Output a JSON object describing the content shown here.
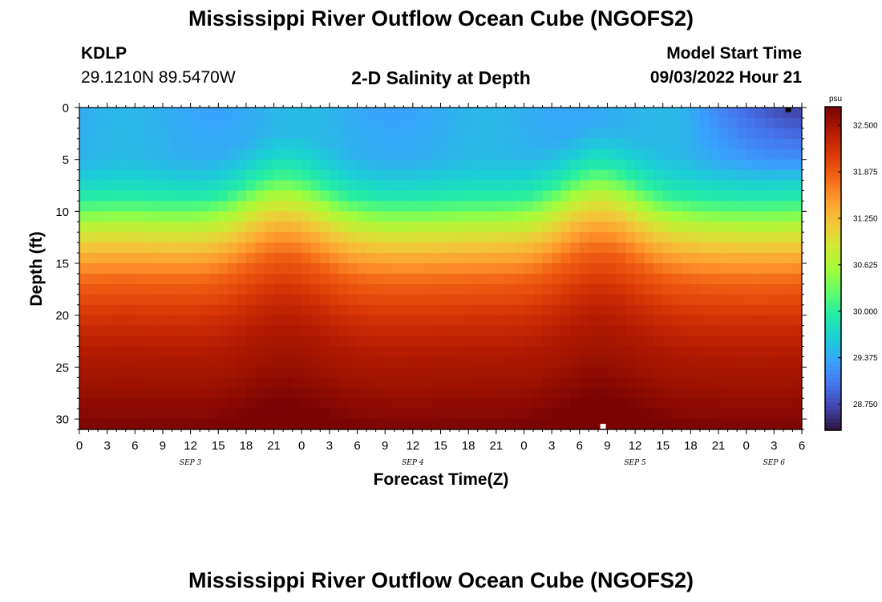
{
  "header": {
    "title": "Mississippi River Outflow Ocean Cube (NGOFS2)",
    "station_id": "KDLP",
    "station_coords": "29.1210N  89.5470W",
    "product": "2-D Salinity at Depth",
    "model_start_label": "Model Start Time",
    "model_start_value": "09/03/2022 Hour 21"
  },
  "footer": {
    "title_repeat": "Mississippi River Outflow Ocean Cube (NGOFS2)"
  },
  "chart_data": {
    "type": "heatmap",
    "xlabel": "Forecast Time(Z)",
    "ylabel": "Depth (ft)",
    "x_tick_labels": [
      "0",
      "3",
      "6",
      "9",
      "12",
      "15",
      "18",
      "21",
      "0",
      "3",
      "6",
      "9",
      "12",
      "15",
      "18",
      "21",
      "0",
      "3",
      "6",
      "9",
      "12",
      "15",
      "18",
      "21",
      "0",
      "3",
      "6"
    ],
    "x_range_hours": [
      0,
      78
    ],
    "date_labels": [
      {
        "text": "SEP 3",
        "hour": 12
      },
      {
        "text": "SEP 4",
        "hour": 36
      },
      {
        "text": "SEP 5",
        "hour": 60
      },
      {
        "text": "SEP 6",
        "hour": 75
      }
    ],
    "y_tick_labels": [
      "0",
      "5",
      "10",
      "15",
      "20",
      "25",
      "30"
    ],
    "ylim": [
      0,
      31
    ],
    "colorbar": {
      "unit": "psu",
      "range": [
        28.4,
        32.75
      ],
      "tick_labels": [
        "32.500",
        "31.875",
        "31.250",
        "30.625",
        "30.000",
        "29.375",
        "28.750"
      ],
      "tick_values": [
        32.5,
        31.875,
        31.25,
        30.625,
        30.0,
        29.375,
        28.75
      ],
      "colors": [
        "#30123b",
        "#4145ab",
        "#4675ed",
        "#39a2fc",
        "#1bcfd4",
        "#24eca6",
        "#61fc6c",
        "#a4fc3b",
        "#d1e834",
        "#f3c63a",
        "#fe9b2d",
        "#f36315",
        "#d93806",
        "#b11901",
        "#7a0403"
      ]
    },
    "depth_profile": [
      {
        "depth": 0,
        "salinity": 29.4
      },
      {
        "depth": 5,
        "salinity": 29.45
      },
      {
        "depth": 7,
        "salinity": 29.65
      },
      {
        "depth": 9,
        "salinity": 30.0
      },
      {
        "depth": 11,
        "salinity": 30.6
      },
      {
        "depth": 13,
        "salinity": 31.1
      },
      {
        "depth": 15,
        "salinity": 31.5
      },
      {
        "depth": 17,
        "salinity": 31.85
      },
      {
        "depth": 19,
        "salinity": 32.05
      },
      {
        "depth": 21,
        "salinity": 32.25
      },
      {
        "depth": 24,
        "salinity": 32.45
      },
      {
        "depth": 27,
        "salinity": 32.55
      },
      {
        "depth": 29,
        "salinity": 32.65
      },
      {
        "depth": 31,
        "salinity": 32.75
      }
    ],
    "uplift_events": [
      {
        "hour": 22,
        "depth_shift_ft": 2.6
      },
      {
        "hour": 56,
        "depth_shift_ft": 3.2
      }
    ],
    "fresh_surface_event": {
      "start_hour": 65,
      "peak_hour": 77,
      "min_salinity": 28.6,
      "depth_extent_ft": 7
    },
    "markers": [
      {
        "hour": 76.5,
        "depth": 0.2,
        "color": "#000000"
      },
      {
        "hour": 56.5,
        "depth": 30.7,
        "color": "#ffffff"
      }
    ]
  }
}
